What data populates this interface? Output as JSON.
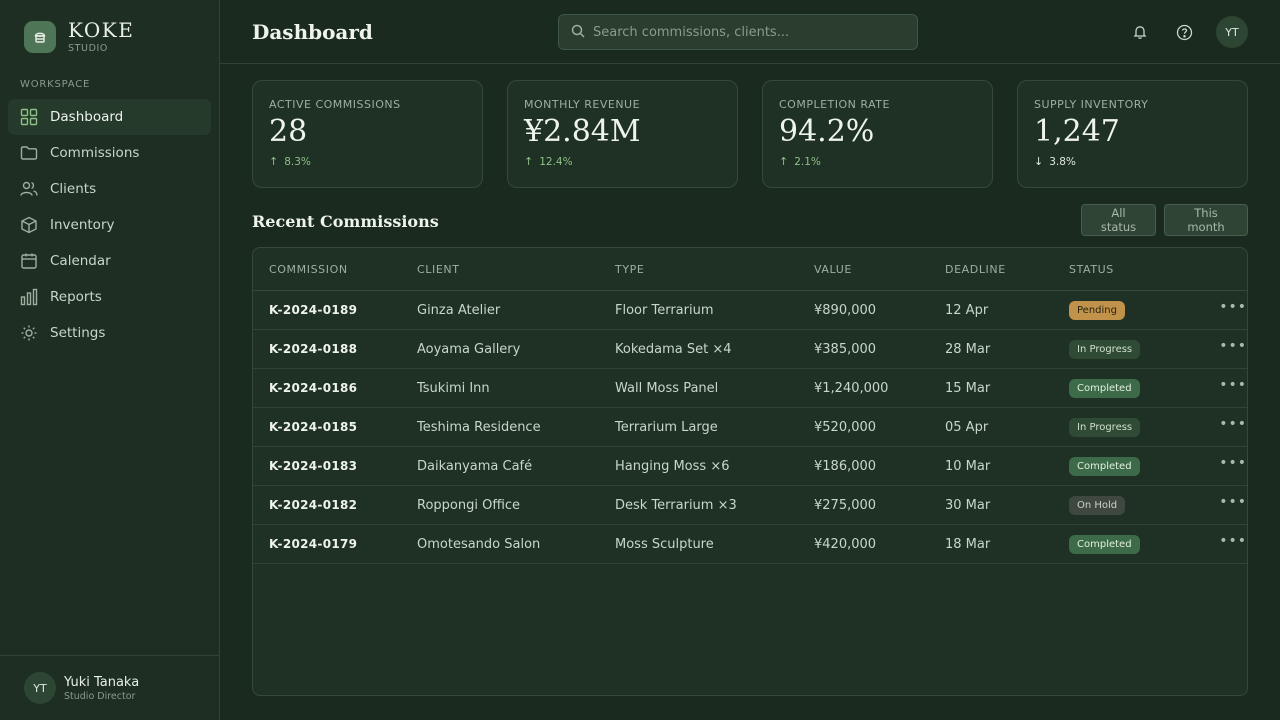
{
  "brand": {
    "name": "KOKE",
    "sub": "STUDIO"
  },
  "sidebar": {
    "section_label": "WORKSPACE",
    "items": [
      {
        "label": "Dashboard",
        "icon": "grid-icon",
        "active": true
      },
      {
        "label": "Commissions",
        "icon": "folder-icon",
        "active": false
      },
      {
        "label": "Clients",
        "icon": "users-icon",
        "active": false
      },
      {
        "label": "Inventory",
        "icon": "box-icon",
        "active": false
      },
      {
        "label": "Calendar",
        "icon": "calendar-icon",
        "active": false
      },
      {
        "label": "Reports",
        "icon": "bar-chart-icon",
        "active": false
      },
      {
        "label": "Settings",
        "icon": "gear-icon",
        "active": false
      }
    ],
    "user": {
      "initials": "YT",
      "name": "Yuki Tanaka",
      "role": "Studio Director"
    }
  },
  "header": {
    "title": "Dashboard",
    "search_placeholder": "Search commissions, clients...",
    "avatar_initials": "YT"
  },
  "stats": [
    {
      "label": "ACTIVE COMMISSIONS",
      "value": "28",
      "change": "8.3%",
      "direction": "up"
    },
    {
      "label": "MONTHLY REVENUE",
      "value": "¥2.84M",
      "change": "12.4%",
      "direction": "up"
    },
    {
      "label": "COMPLETION RATE",
      "value": "94.2%",
      "change": "2.1%",
      "direction": "up"
    },
    {
      "label": "SUPPLY INVENTORY",
      "value": "1,247",
      "change": "3.8%",
      "direction": "down"
    }
  ],
  "recent": {
    "title": "Recent Commissions",
    "filters": {
      "status": "All status",
      "period": "This month"
    },
    "columns": [
      "COMMISSION",
      "CLIENT",
      "TYPE",
      "VALUE",
      "DEADLINE",
      "STATUS"
    ],
    "rows": [
      {
        "id": "K-2024-0189",
        "client": "Ginza Atelier",
        "type": "Floor Terrarium",
        "value": "¥890,000",
        "deadline": "12 Apr",
        "status": "Pending"
      },
      {
        "id": "K-2024-0188",
        "client": "Aoyama Gallery",
        "type": "Kokedama Set ×4",
        "value": "¥385,000",
        "deadline": "28 Mar",
        "status": "In Progress"
      },
      {
        "id": "K-2024-0186",
        "client": "Tsukimi Inn",
        "type": "Wall Moss Panel",
        "value": "¥1,240,000",
        "deadline": "15 Mar",
        "status": "Completed"
      },
      {
        "id": "K-2024-0185",
        "client": "Teshima Residence",
        "type": "Terrarium Large",
        "value": "¥520,000",
        "deadline": "05 Apr",
        "status": "In Progress"
      },
      {
        "id": "K-2024-0183",
        "client": "Daikanyama Café",
        "type": "Hanging Moss ×6",
        "value": "¥186,000",
        "deadline": "10 Mar",
        "status": "Completed"
      },
      {
        "id": "K-2024-0182",
        "client": "Roppongi Office",
        "type": "Desk Terrarium ×3",
        "value": "¥275,000",
        "deadline": "30 Mar",
        "status": "On Hold"
      },
      {
        "id": "K-2024-0179",
        "client": "Omotesando Salon",
        "type": "Moss Sculpture",
        "value": "¥420,000",
        "deadline": "18 Mar",
        "status": "Completed"
      }
    ]
  },
  "status_colors": {
    "Pending": {
      "bg": "#c0924a",
      "fg": "#2a2414"
    },
    "In Progress": {
      "bg": "#2f4a35",
      "fg": "#cfe0cd"
    },
    "Completed": {
      "bg": "#3d6a48",
      "fg": "#e3efe0"
    },
    "On Hold": {
      "bg": "#3f4741",
      "fg": "#c9d1c9"
    }
  },
  "colors": {
    "accent": "#4e7656",
    "background": "#1a2a1f",
    "positive": "#8fbf86"
  }
}
